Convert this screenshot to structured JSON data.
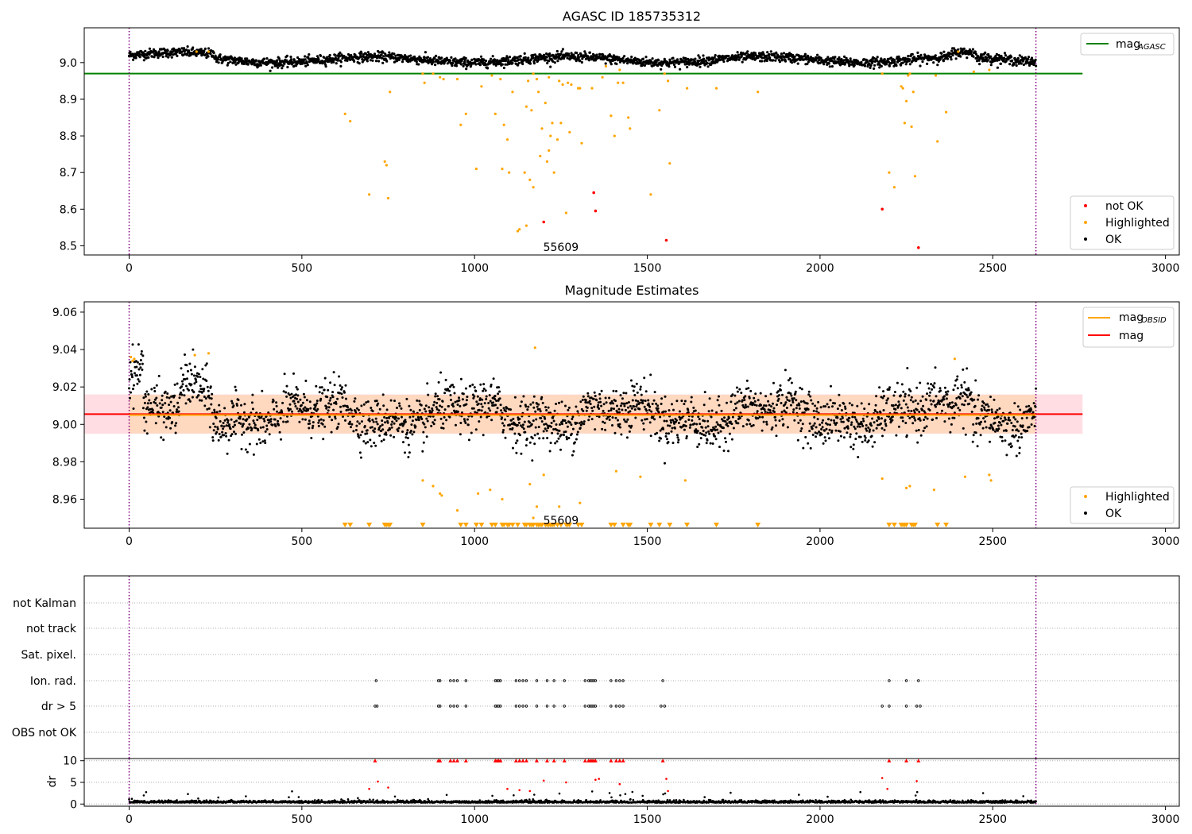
{
  "chart_data": [
    {
      "panel": "top",
      "type": "scatter",
      "title": "AGASC ID 185735312",
      "xlim": [
        -130,
        3040
      ],
      "ylim": [
        8.475,
        9.095
      ],
      "xticks": [
        0,
        500,
        1000,
        1500,
        2000,
        2500,
        3000
      ],
      "yticks": [
        8.5,
        8.6,
        8.7,
        8.8,
        8.9,
        9.0
      ],
      "ytick_labels": [
        "8.5",
        "8.6",
        "8.7",
        "8.8",
        "8.9",
        "9.0"
      ],
      "grid": false,
      "legend_upper": {
        "placement": "top-right",
        "entries": [
          {
            "label_main": "mag",
            "label_sub": "AGASC",
            "color": "#008000",
            "marker": "line"
          }
        ]
      },
      "legend_lower": {
        "placement": "bottom-right",
        "entries": [
          {
            "label": "not OK",
            "color": "#ff0000",
            "marker": "dot"
          },
          {
            "label": "Highlighted",
            "color": "#ffa500",
            "marker": "dot"
          },
          {
            "label": "OK",
            "color": "#000000",
            "marker": "dot"
          }
        ]
      },
      "hline": {
        "name": "mag_AGASC",
        "y": 8.97,
        "x_range": [
          -130,
          2760
        ],
        "color": "#008000"
      },
      "vlines": {
        "x": [
          0,
          2625
        ],
        "color": "#800080",
        "style": "dotted"
      },
      "annotation": {
        "text": "55609",
        "x": 1250,
        "y": 8.49
      },
      "ok_series": {
        "color": "#000000",
        "baseline": 9.008,
        "x_range": [
          0,
          2625
        ],
        "count": 2250
      },
      "highlighted": {
        "color": "#ffa500",
        "points": [
          [
            195,
            9.03
          ],
          [
            230,
            9.03
          ],
          [
            625,
            8.86
          ],
          [
            640,
            8.84
          ],
          [
            695,
            8.64
          ],
          [
            740,
            8.73
          ],
          [
            745,
            8.72
          ],
          [
            750,
            8.63
          ],
          [
            755,
            8.92
          ],
          [
            850,
            8.97
          ],
          [
            855,
            8.945
          ],
          [
            880,
            8.97
          ],
          [
            900,
            8.96
          ],
          [
            910,
            8.955
          ],
          [
            950,
            8.955
          ],
          [
            960,
            8.83
          ],
          [
            975,
            8.86
          ],
          [
            1005,
            8.71
          ],
          [
            1020,
            8.935
          ],
          [
            1050,
            8.965
          ],
          [
            1060,
            8.86
          ],
          [
            1075,
            8.955
          ],
          [
            1080,
            8.71
          ],
          [
            1085,
            8.83
          ],
          [
            1095,
            8.79
          ],
          [
            1100,
            8.7
          ],
          [
            1110,
            8.92
          ],
          [
            1125,
            8.54
          ],
          [
            1145,
            8.7
          ],
          [
            1150,
            8.88
          ],
          [
            1155,
            8.95
          ],
          [
            1160,
            8.68
          ],
          [
            1165,
            8.87
          ],
          [
            1170,
            8.66
          ],
          [
            1180,
            8.955
          ],
          [
            1185,
            8.92
          ],
          [
            1190,
            8.745
          ],
          [
            1195,
            8.82
          ],
          [
            1205,
            8.89
          ],
          [
            1210,
            8.73
          ],
          [
            1215,
            8.76
          ],
          [
            1220,
            8.8
          ],
          [
            1225,
            8.835
          ],
          [
            1230,
            8.7
          ],
          [
            1240,
            8.79
          ],
          [
            1245,
            8.95
          ],
          [
            1250,
            8.835
          ],
          [
            1265,
            8.59
          ],
          [
            1270,
            8.945
          ],
          [
            1275,
            8.81
          ],
          [
            1280,
            8.94
          ],
          [
            1300,
            8.93
          ],
          [
            1310,
            8.78
          ],
          [
            1340,
            8.93
          ],
          [
            1370,
            8.96
          ],
          [
            1380,
            8.99
          ],
          [
            1395,
            8.855
          ],
          [
            1405,
            8.8
          ],
          [
            1415,
            8.945
          ],
          [
            1420,
            8.98
          ],
          [
            1430,
            8.945
          ],
          [
            1445,
            8.85
          ],
          [
            1450,
            8.82
          ],
          [
            1510,
            8.64
          ],
          [
            1535,
            8.87
          ],
          [
            1550,
            8.97
          ],
          [
            1560,
            8.95
          ],
          [
            1565,
            8.725
          ],
          [
            1615,
            8.93
          ],
          [
            1700,
            8.93
          ],
          [
            1820,
            8.92
          ],
          [
            2180,
            8.97
          ],
          [
            2200,
            8.7
          ],
          [
            2215,
            8.66
          ],
          [
            2235,
            8.935
          ],
          [
            2240,
            8.93
          ],
          [
            2245,
            8.835
          ],
          [
            2250,
            8.895
          ],
          [
            2255,
            8.965
          ],
          [
            2260,
            8.97
          ],
          [
            2265,
            8.825
          ],
          [
            2270,
            8.92
          ],
          [
            2275,
            8.69
          ],
          [
            2335,
            8.965
          ],
          [
            2340,
            8.785
          ],
          [
            2365,
            8.865
          ],
          [
            2400,
            9.03
          ],
          [
            2445,
            8.975
          ],
          [
            2490,
            8.98
          ],
          [
            1130,
            8.545
          ],
          [
            1150,
            8.555
          ],
          [
            1215,
            8.96
          ],
          [
            1305,
            8.93
          ],
          [
            1255,
            8.94
          ],
          [
            1170,
            8.97
          ]
        ]
      },
      "not_ok": {
        "color": "#ff0000",
        "points": [
          [
            1200,
            8.565
          ],
          [
            1345,
            8.645
          ],
          [
            1350,
            8.595
          ],
          [
            1555,
            8.515
          ],
          [
            2180,
            8.6
          ],
          [
            2285,
            8.495
          ]
        ]
      }
    },
    {
      "panel": "middle",
      "type": "scatter",
      "title": "Magnitude Estimates",
      "xlim": [
        -130,
        3040
      ],
      "ylim": [
        8.9445,
        9.0655
      ],
      "xticks": [
        0,
        500,
        1000,
        1500,
        2000,
        2500,
        3000
      ],
      "yticks": [
        8.96,
        8.98,
        9.0,
        9.02,
        9.04,
        9.06
      ],
      "ytick_labels": [
        "8.96",
        "8.98",
        "9.00",
        "9.02",
        "9.04",
        "9.06"
      ],
      "grid": false,
      "legend_upper": {
        "placement": "top-right",
        "entries": [
          {
            "label_main": "mag",
            "label_sub": "OBSID",
            "color": "#ffa500",
            "marker": "line"
          },
          {
            "label_main": "mag",
            "label_sub": "",
            "color": "#ff0000",
            "marker": "line"
          }
        ]
      },
      "legend_lower": {
        "placement": "bottom-right",
        "entries": [
          {
            "label": "Highlighted",
            "color": "#ffa500",
            "marker": "dot"
          },
          {
            "label": "OK",
            "color": "#000000",
            "marker": "dot"
          }
        ]
      },
      "mag_line": {
        "y": 9.0055,
        "x_range": [
          -130,
          2760
        ],
        "color": "#ff0000"
      },
      "mag_band": {
        "y_low": 8.995,
        "y_high": 9.016,
        "x_range": [
          -130,
          2760
        ],
        "color": "#ffdde3"
      },
      "obsid_band": {
        "y_low": 8.9952,
        "y_high": 9.0158,
        "x_range": [
          0,
          2625
        ],
        "color": "#ffd8c0"
      },
      "obsid_line": {
        "y": 9.005,
        "x_range": [
          0,
          2625
        ],
        "color": "#ffa500"
      },
      "vlines": {
        "x": [
          0,
          2625
        ],
        "color": "#800080",
        "style": "dotted"
      },
      "annotation": {
        "text": "55609",
        "x": 1250,
        "y": 8.9475
      },
      "ok_series": {
        "color": "#000000",
        "baseline": 9.005,
        "x_range": [
          0,
          2625
        ],
        "count": 2300
      },
      "highlighted": {
        "color": "#ffa500",
        "points": [
          [
            5,
            9.036
          ],
          [
            10,
            9.034
          ],
          [
            15,
            9.035
          ],
          [
            190,
            9.037
          ],
          [
            230,
            9.038
          ],
          [
            850,
            8.97
          ],
          [
            880,
            8.967
          ],
          [
            900,
            8.963
          ],
          [
            905,
            8.962
          ],
          [
            950,
            8.954
          ],
          [
            1010,
            8.963
          ],
          [
            1045,
            8.965
          ],
          [
            1080,
            8.96
          ],
          [
            1160,
            8.968
          ],
          [
            1170,
            8.95
          ],
          [
            1175,
            9.041
          ],
          [
            1180,
            8.956
          ],
          [
            1200,
            8.973
          ],
          [
            1245,
            8.956
          ],
          [
            1305,
            8.958
          ],
          [
            1410,
            8.975
          ],
          [
            1480,
            8.972
          ],
          [
            1610,
            8.97
          ],
          [
            2180,
            8.971
          ],
          [
            2250,
            8.966
          ],
          [
            2260,
            8.967
          ],
          [
            2330,
            8.965
          ],
          [
            2390,
            9.035
          ],
          [
            2420,
            8.972
          ],
          [
            2490,
            8.973
          ],
          [
            2495,
            8.97
          ]
        ]
      },
      "below_range_markers": {
        "color": "#ffa500",
        "x": [
          625,
          640,
          695,
          740,
          745,
          750,
          755,
          850,
          960,
          975,
          1005,
          1020,
          1050,
          1060,
          1080,
          1085,
          1095,
          1100,
          1110,
          1125,
          1145,
          1150,
          1160,
          1165,
          1170,
          1180,
          1185,
          1190,
          1195,
          1205,
          1210,
          1215,
          1220,
          1225,
          1230,
          1240,
          1250,
          1265,
          1270,
          1275,
          1300,
          1310,
          1395,
          1405,
          1430,
          1445,
          1450,
          1510,
          1535,
          1565,
          1615,
          1700,
          1820,
          2200,
          2215,
          2235,
          2240,
          2245,
          2250,
          2265,
          2270,
          2275,
          2340,
          2365
        ]
      }
    },
    {
      "panel": "bottom-flags",
      "type": "scatter",
      "xlim": [
        -130,
        3040
      ],
      "categories": [
        "not Kalman",
        "not track",
        "Sat. pixel.",
        "Ion. rad.",
        "dr > 5",
        "OBS not OK"
      ],
      "grid": true,
      "vlines": {
        "x": [
          0,
          2625
        ],
        "color": "#800080",
        "style": "dotted"
      },
      "flag_points": {
        "Ion. rad.": [
          715,
          895,
          900,
          930,
          940,
          950,
          975,
          1060,
          1065,
          1070,
          1075,
          1120,
          1130,
          1140,
          1150,
          1180,
          1210,
          1230,
          1260,
          1320,
          1330,
          1335,
          1340,
          1345,
          1350,
          1395,
          1410,
          1420,
          1430,
          1545,
          2200,
          2250,
          2285
        ],
        "dr > 5": [
          712,
          718,
          895,
          900,
          930,
          940,
          950,
          975,
          1060,
          1065,
          1070,
          1075,
          1120,
          1130,
          1140,
          1150,
          1180,
          1210,
          1230,
          1260,
          1320,
          1330,
          1335,
          1340,
          1345,
          1350,
          1395,
          1410,
          1420,
          1430,
          1540,
          1550,
          2180,
          2200,
          2250,
          2280,
          2290
        ]
      }
    },
    {
      "panel": "bottom-dr",
      "type": "scatter",
      "ylabel": "dr",
      "xlim": [
        -130,
        3040
      ],
      "ylim": [
        -0.5,
        10.5
      ],
      "xticks": [
        0,
        500,
        1000,
        1500,
        2000,
        2500,
        3000
      ],
      "yticks": [
        0,
        5,
        10
      ],
      "grid": true,
      "vlines": {
        "x": [
          0,
          2625
        ],
        "color": "#800080",
        "style": "dotted"
      },
      "red_capped_x": [
        712,
        895,
        900,
        930,
        940,
        950,
        975,
        1060,
        1065,
        1070,
        1075,
        1120,
        1130,
        1140,
        1150,
        1180,
        1210,
        1230,
        1260,
        1320,
        1330,
        1335,
        1340,
        1345,
        1350,
        1395,
        1410,
        1420,
        1430,
        1545,
        2200,
        2250,
        2285
      ],
      "red_points": [
        [
          695,
          3.5
        ],
        [
          720,
          5.2
        ],
        [
          750,
          3.8
        ],
        [
          1095,
          3.5
        ],
        [
          1130,
          3.2
        ],
        [
          1160,
          3.0
        ],
        [
          1200,
          5.4
        ],
        [
          1265,
          5.0
        ],
        [
          1350,
          5.6
        ],
        [
          1360,
          5.8
        ],
        [
          1420,
          4.6
        ],
        [
          1555,
          5.8
        ],
        [
          1560,
          3.0
        ],
        [
          2180,
          6.0
        ],
        [
          2195,
          3.5
        ],
        [
          2280,
          5.3
        ]
      ],
      "ok_series": {
        "color": "#000000",
        "baseline": 0.3,
        "x_range": [
          0,
          2625
        ],
        "count": 2300
      }
    }
  ]
}
